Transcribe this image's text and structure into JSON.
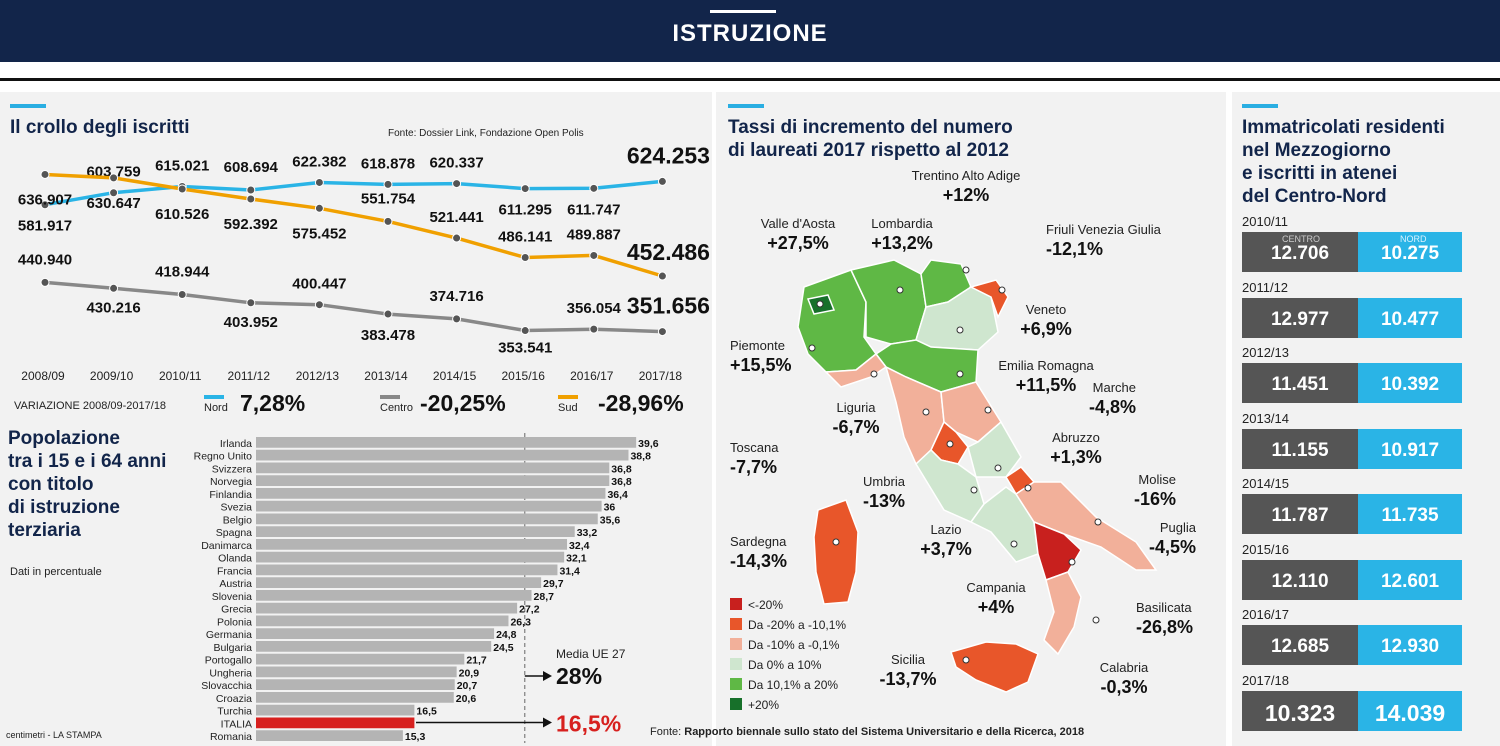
{
  "header": {
    "title": "ISTRUZIONE"
  },
  "panel1": {
    "title": "Il crollo degli iscritti",
    "source": "Fonte: Dossier Link, Fondazione Open Polis",
    "variation_label": "VARIAZIONE 2008/09-2017/18",
    "legend": [
      {
        "name": "Nord",
        "value": "7,28%",
        "color": "#2ab4e6"
      },
      {
        "name": "Centro",
        "value": "-20,25%",
        "color": "#888888"
      },
      {
        "name": "Sud",
        "value": "-28,96%",
        "color": "#f0a000"
      }
    ]
  },
  "panel2": {
    "title": "Popolazione tra i 15 e i 64 anni con titolo di istruzione terziaria",
    "title_lines": [
      "Popolazione",
      "tra i 15 e i 64 anni",
      "con titolo",
      "di istruzione",
      "terziaria"
    ],
    "subtitle": "Dati in percentuale",
    "media_label": "Media UE 27",
    "media_value": "28%",
    "italia_value": "16,5%",
    "credit": "centimetri - LA STAMPA"
  },
  "map": {
    "title_lines": [
      "Tassi di incremento del numero",
      "di laureati 2017 rispetto al 2012"
    ],
    "source_prefix": "Fonte: ",
    "source": "Rapporto biennale sullo stato del Sistema Universitario e della Ricerca, 2018",
    "legend": [
      {
        "label": "<-20%",
        "color": "#c8201e"
      },
      {
        "label": "Da -20% a -10,1%",
        "color": "#e8562a"
      },
      {
        "label": "Da -10% a -0,1%",
        "color": "#f2b09a"
      },
      {
        "label": "Da 0% a 10%",
        "color": "#cfe6cf"
      },
      {
        "label": "Da 10,1% a 20%",
        "color": "#5fb845"
      },
      {
        "label": "+20%",
        "color": "#17702a"
      }
    ],
    "regions": [
      {
        "name": "Trentino Alto Adige",
        "value": "+12%"
      },
      {
        "name": "Valle d'Aosta",
        "value": "+27,5%"
      },
      {
        "name": "Lombardia",
        "value": "+13,2%"
      },
      {
        "name": "Friuli Venezia Giulia",
        "value": "-12,1%"
      },
      {
        "name": "Veneto",
        "value": "+6,9%"
      },
      {
        "name": "Piemonte",
        "value": "+15,5%"
      },
      {
        "name": "Emilia Romagna",
        "value": "+11,5%"
      },
      {
        "name": "Marche",
        "value": "-4,8%"
      },
      {
        "name": "Liguria",
        "value": "-6,7%"
      },
      {
        "name": "Toscana",
        "value": "-7,7%"
      },
      {
        "name": "Abruzzo",
        "value": "+1,3%"
      },
      {
        "name": "Umbria",
        "value": "-13%"
      },
      {
        "name": "Molise",
        "value": "-16%"
      },
      {
        "name": "Lazio",
        "value": "+3,7%"
      },
      {
        "name": "Puglia",
        "value": "-4,5%"
      },
      {
        "name": "Sardegna",
        "value": "-14,3%"
      },
      {
        "name": "Campania",
        "value": "+4%"
      },
      {
        "name": "Basilicata",
        "value": "-26,8%"
      },
      {
        "name": "Sicilia",
        "value": "-13,7%"
      },
      {
        "name": "Calabria",
        "value": "-0,3%"
      }
    ]
  },
  "panel3": {
    "title_lines": [
      "Immatricolati residenti",
      "nel Mezzogiorno",
      "e iscritti in atenei",
      "del Centro-Nord"
    ],
    "tag_centro": "CENTRO",
    "tag_nord": "NORD",
    "rows": [
      {
        "year": "2010/11",
        "centro": "12.706",
        "nord": "10.275"
      },
      {
        "year": "2011/12",
        "centro": "12.977",
        "nord": "10.477"
      },
      {
        "year": "2012/13",
        "centro": "11.451",
        "nord": "10.392"
      },
      {
        "year": "2013/14",
        "centro": "11.155",
        "nord": "10.917"
      },
      {
        "year": "2014/15",
        "centro": "11.787",
        "nord": "11.735"
      },
      {
        "year": "2015/16",
        "centro": "12.110",
        "nord": "12.601"
      },
      {
        "year": "2016/17",
        "centro": "12.685",
        "nord": "12.930"
      },
      {
        "year": "2017/18",
        "centro": "10.323",
        "nord": "14.039"
      }
    ]
  },
  "chart_data": [
    {
      "type": "line",
      "title": "Il crollo degli iscritti",
      "x": [
        "2008/09",
        "2009/10",
        "2010/11",
        "2011/12",
        "2012/13",
        "2013/14",
        "2014/15",
        "2015/16",
        "2016/17",
        "2017/18"
      ],
      "ylim": [
        340000,
        645000
      ],
      "series": [
        {
          "name": "Nord",
          "color": "#2ab4e6",
          "values": [
            581917,
            603759,
            615021,
            608694,
            622382,
            618878,
            620337,
            611295,
            611747,
            624253
          ],
          "labels": [
            "581.917",
            "603.759",
            "615.021",
            "608.694",
            "622.382",
            "618.878",
            "620.337",
            "611.295",
            "611.747",
            "624.253"
          ]
        },
        {
          "name": "Sud",
          "color": "#f0a000",
          "values": [
            636907,
            630647,
            610526,
            592392,
            575452,
            551754,
            521441,
            486141,
            489887,
            452486
          ],
          "labels": [
            "636.907",
            "630.647",
            "610.526",
            "592.392",
            "575.452",
            "551.754",
            "521.441",
            "486.141",
            "489.887",
            "452.486"
          ]
        },
        {
          "name": "Centro",
          "color": "#888888",
          "values": [
            440940,
            430216,
            418944,
            403952,
            400447,
            383478,
            374716,
            353541,
            356054,
            351656
          ],
          "labels": [
            "440.940",
            "430.216",
            "418.944",
            "403.952",
            "400.447",
            "383.478",
            "374.716",
            "353.541",
            "356.054",
            "351.656"
          ]
        }
      ]
    },
    {
      "type": "bar",
      "orientation": "horizontal",
      "title": "Popolazione tra i 15 e i 64 anni con titolo di istruzione terziaria",
      "categories": [
        "Irlanda",
        "Regno Unito",
        "Svizzera",
        "Norvegia",
        "Finlandia",
        "Svezia",
        "Belgio",
        "Spagna",
        "Danimarca",
        "Olanda",
        "Francia",
        "Austria",
        "Slovenia",
        "Grecia",
        "Polonia",
        "Germania",
        "Bulgaria",
        "Portogallo",
        "Ungheria",
        "Slovacchia",
        "Croazia",
        "Turchia",
        "ITALIA",
        "Romania"
      ],
      "values": [
        39.6,
        38.8,
        36.8,
        36.8,
        36.4,
        36,
        35.6,
        33.2,
        32.4,
        32.1,
        31.4,
        29.7,
        28.7,
        27.2,
        26.3,
        24.8,
        24.5,
        21.7,
        20.9,
        20.7,
        20.6,
        16.5,
        16.5,
        15.3
      ],
      "labels": [
        "39,6",
        "38,8",
        "36,8",
        "36,8",
        "36,4",
        "36",
        "35,6",
        "33,2",
        "32,4",
        "32,1",
        "31,4",
        "29,7",
        "28,7",
        "27,2",
        "26,3",
        "24,8",
        "24,5",
        "21,7",
        "20,9",
        "20,7",
        "20,6",
        "16,5",
        "",
        "15,3"
      ],
      "highlight": "ITALIA",
      "highlight_color": "#d7201e",
      "reference": 28,
      "xlim": [
        0,
        40
      ]
    },
    {
      "type": "table",
      "title": "Immatricolati residenti nel Mezzogiorno e iscritti in atenei del Centro-Nord",
      "columns": [
        "anno",
        "CENTRO",
        "NORD"
      ],
      "rows": [
        [
          "2010/11",
          12706,
          10275
        ],
        [
          "2011/12",
          12977,
          10477
        ],
        [
          "2012/13",
          11451,
          10392
        ],
        [
          "2013/14",
          11155,
          10917
        ],
        [
          "2014/15",
          11787,
          11735
        ],
        [
          "2015/16",
          12110,
          12601
        ],
        [
          "2016/17",
          12685,
          12930
        ],
        [
          "2017/18",
          10323,
          14039
        ]
      ]
    }
  ]
}
